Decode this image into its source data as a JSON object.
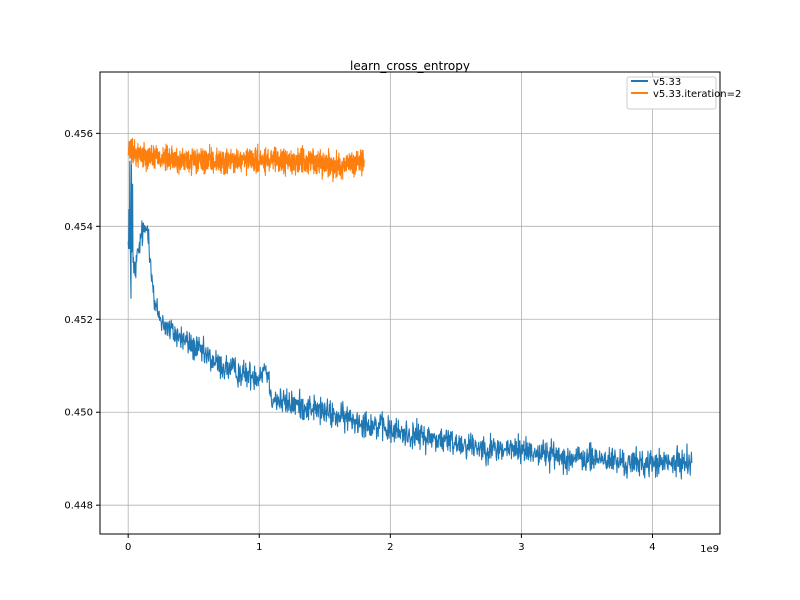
{
  "chart_data": {
    "type": "line",
    "title": "learn_cross_entropy",
    "xlabel": "",
    "ylabel": "",
    "x_offset_label": "1e9",
    "xlim": [
      -0.215,
      4.515
    ],
    "ylim": [
      0.44738,
      0.45732
    ],
    "x_ticks": [
      0,
      1,
      2,
      3,
      4
    ],
    "x_tick_labels": [
      "0",
      "1",
      "2",
      "3",
      "4"
    ],
    "y_ticks": [
      0.448,
      0.45,
      0.452,
      0.454,
      0.456
    ],
    "y_tick_labels": [
      "0.448",
      "0.450",
      "0.452",
      "0.454",
      "0.456"
    ],
    "grid": true,
    "legend_position": "top-right",
    "series": [
      {
        "name": "v5.33",
        "color": "#1f77b4",
        "x": [
          0,
          0.02,
          0.05,
          0.1,
          0.15,
          0.2,
          0.25,
          0.3,
          0.4,
          0.5,
          0.6,
          0.7,
          0.8,
          0.9,
          1.0,
          1.05,
          1.1,
          1.2,
          1.4,
          1.6,
          1.8,
          2.0,
          2.2,
          2.4,
          2.6,
          2.8,
          3.0,
          3.2,
          3.4,
          3.6,
          3.8,
          4.0,
          4.2,
          4.3
        ],
        "y": [
          0.4525,
          0.4535,
          0.453,
          0.4538,
          0.454,
          0.4523,
          0.452,
          0.4518,
          0.4516,
          0.4514,
          0.4512,
          0.451,
          0.4509,
          0.4508,
          0.4508,
          0.451,
          0.4503,
          0.4502,
          0.4501,
          0.4499,
          0.4498,
          0.4496,
          0.4495,
          0.4494,
          0.4493,
          0.4492,
          0.4492,
          0.4491,
          0.449,
          0.449,
          0.4489,
          0.4489,
          0.4489,
          0.449
        ],
        "noise": 0.00045
      },
      {
        "name": "v5.33.iteration=2",
        "color": "#ff7f0e",
        "x": [
          0,
          0.2,
          0.4,
          0.6,
          0.8,
          1.0,
          1.2,
          1.4,
          1.6,
          1.8
        ],
        "y": [
          0.4556,
          0.4555,
          0.4554,
          0.4554,
          0.4554,
          0.4554,
          0.4554,
          0.4554,
          0.4553,
          0.4554
        ],
        "noise": 0.0004
      }
    ]
  }
}
